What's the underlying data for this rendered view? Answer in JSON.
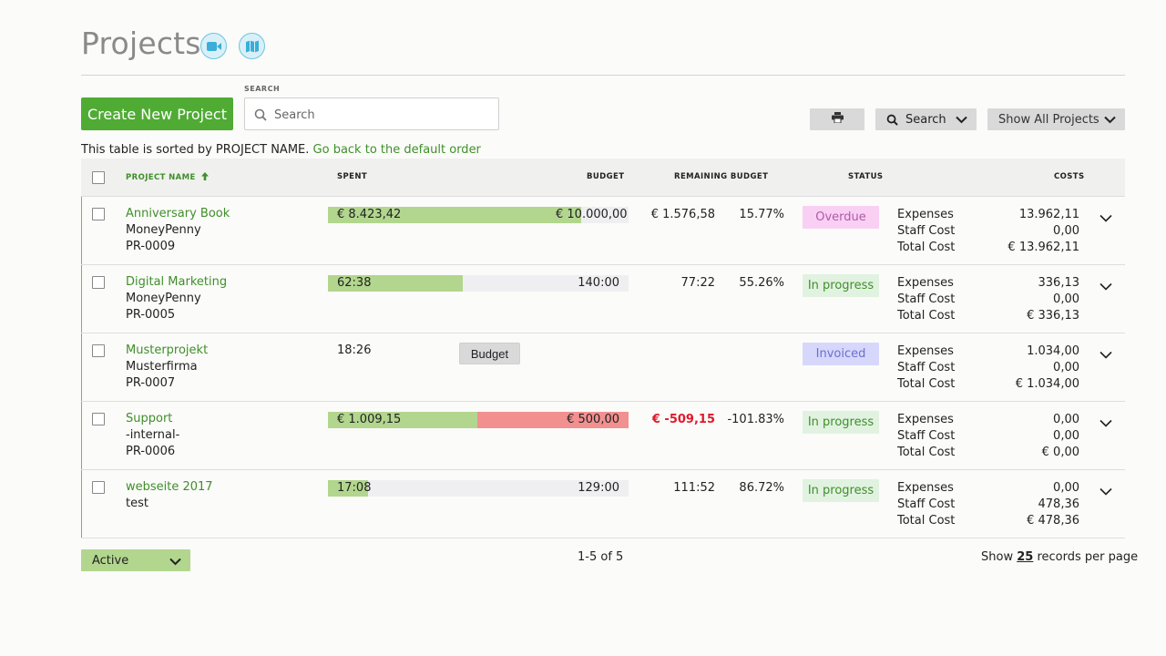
{
  "header": {
    "title": "Projects",
    "icons": [
      "video-camera-icon",
      "map-icon"
    ]
  },
  "toolbar": {
    "create_label": "Create New Project",
    "search_label": "SEARCH",
    "search_placeholder": "Search",
    "print_icon": "print-icon",
    "search_button_label": "Search",
    "show_all_label": "Show All Projects"
  },
  "sort_info": {
    "text": "This table is sorted by PROJECT NAME.",
    "link": "Go back to the default order"
  },
  "columns": {
    "project_name": "PROJECT NAME",
    "spent": "SPENT",
    "budget": "BUDGET",
    "remaining": "REMAINING BUDGET",
    "status": "STATUS",
    "costs": "COSTS"
  },
  "cost_labels": {
    "expenses": "Expenses",
    "staff": "Staff Cost",
    "total": "Total Cost"
  },
  "rows": [
    {
      "name": "Anniversary Book",
      "client": "MoneyPenny",
      "code": "PR-0009",
      "spent": "€ 8.423,42",
      "budget": "€ 10.000,00",
      "spent_fraction": 0.842,
      "remaining": "€ 1.576,58",
      "percent": "15.77%",
      "status": "Overdue",
      "expenses": "13.962,11",
      "staff": "0,00",
      "total": "€ 13.962,11"
    },
    {
      "name": "Digital Marketing",
      "client": "MoneyPenny",
      "code": "PR-0005",
      "spent": "62:38",
      "budget": "140:00",
      "spent_fraction": 0.447,
      "remaining": "77:22",
      "percent": "55.26%",
      "status": "In progress",
      "expenses": "336,13",
      "staff": "0,00",
      "total": "€ 336,13"
    },
    {
      "name": "Musterprojekt",
      "client": "Musterfirma",
      "code": "PR-0007",
      "spent": "18:26",
      "budget_button": "Budget",
      "status": "Invoiced",
      "expenses": "1.034,00",
      "staff": "0,00",
      "total": "€ 1.034,00"
    },
    {
      "name": "Support",
      "client": "-internal-",
      "code": "PR-0006",
      "spent": "€ 1.009,15",
      "budget": "€ 500,00",
      "spent_fraction": 1.0,
      "remaining": "€ -509,15",
      "percent": "-101.83%",
      "status": "In progress",
      "expenses": "0,00",
      "staff": "0,00",
      "total": "€ 0,00"
    },
    {
      "name": "webseite 2017",
      "client": "test",
      "code": "",
      "spent": "17:08",
      "budget": "129:00",
      "spent_fraction": 0.133,
      "remaining": "111:52",
      "percent": "86.72%",
      "status": "In progress",
      "expenses": "0,00",
      "staff": "478,36",
      "total": "€ 478,36"
    }
  ],
  "footer": {
    "filter_value": "Active",
    "pager": "1-5 of 5",
    "per_page_prefix": "Show",
    "per_page_value": "25",
    "per_page_suffix": "records per page"
  },
  "colors": {
    "brand_green": "#4fab34",
    "link_green": "#3f8f2a",
    "bar_green": "#b2d68e",
    "bar_red": "#f29090",
    "negative_red": "#e0192b"
  }
}
